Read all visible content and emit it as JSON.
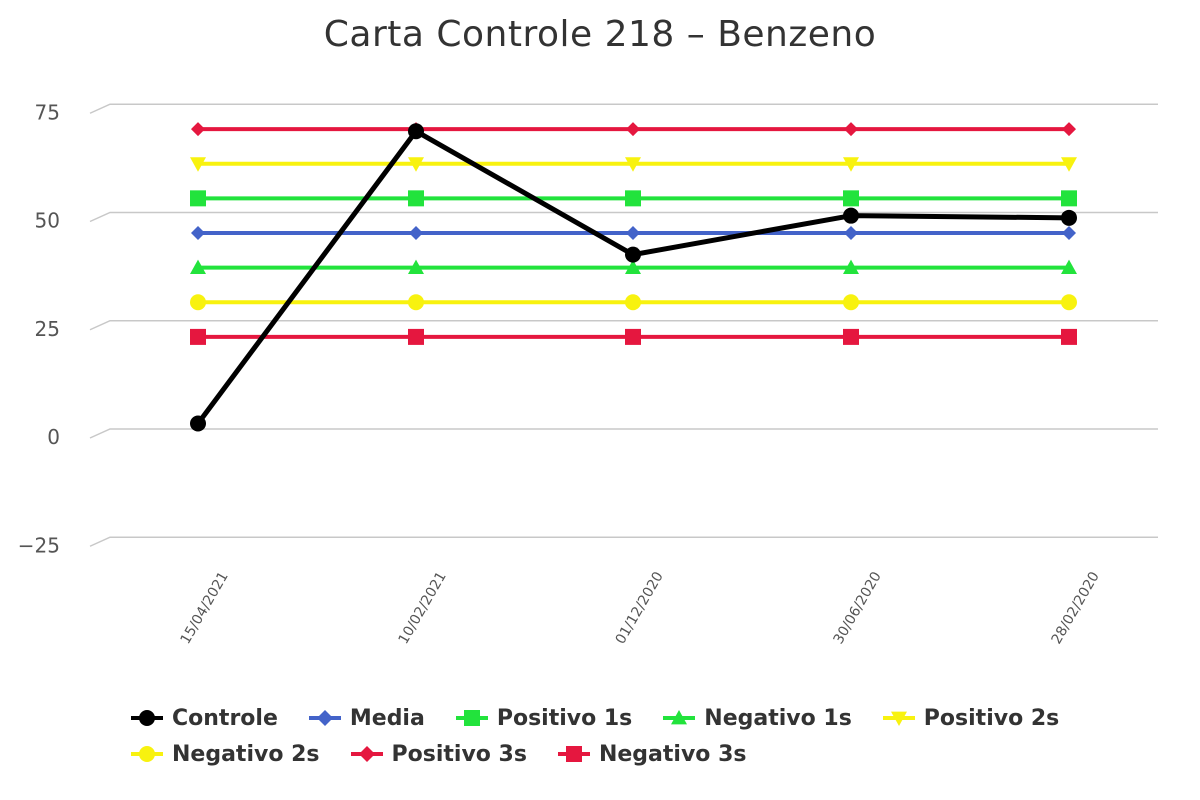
{
  "chart_data": {
    "type": "line",
    "title": "Carta Controle 218 – Benzeno",
    "categories": [
      "15/04/2021",
      "10/02/2021",
      "01/12/2020",
      "30/06/2020",
      "28/02/2020"
    ],
    "ylim": [
      -25,
      75
    ],
    "yticks": [
      -25,
      0,
      25,
      50,
      75
    ],
    "grid": true,
    "legend_position": "bottom",
    "series": [
      {
        "name": "Controle",
        "color": "#000000",
        "marker": "circle",
        "values": [
          1.5,
          69,
          40.5,
          49.5,
          49
        ]
      },
      {
        "name": "Media",
        "color": "#4363c9",
        "marker": "diamond",
        "values": [
          45.5,
          45.5,
          45.5,
          45.5,
          45.5
        ]
      },
      {
        "name": "Positivo 1s",
        "color": "#22e33c",
        "marker": "square",
        "values": [
          53.5,
          53.5,
          53.5,
          53.5,
          53.5
        ]
      },
      {
        "name": "Negativo 1s",
        "color": "#22e33c",
        "marker": "triangle",
        "values": [
          37.5,
          37.5,
          37.5,
          37.5,
          37.5
        ]
      },
      {
        "name": "Positivo 2s",
        "color": "#f8f20f",
        "marker": "triangle-down",
        "values": [
          61.5,
          61.5,
          61.5,
          61.5,
          61.5
        ]
      },
      {
        "name": "Negativo 2s",
        "color": "#f8f20f",
        "marker": "circle",
        "values": [
          29.5,
          29.5,
          29.5,
          29.5,
          29.5
        ]
      },
      {
        "name": "Positivo 3s",
        "color": "#e5173f",
        "marker": "diamond",
        "values": [
          69.5,
          69.5,
          69.5,
          69.5,
          69.5
        ]
      },
      {
        "name": "Negativo 3s",
        "color": "#e5173f",
        "marker": "square",
        "values": [
          21.5,
          21.5,
          21.5,
          21.5,
          21.5
        ]
      }
    ]
  }
}
